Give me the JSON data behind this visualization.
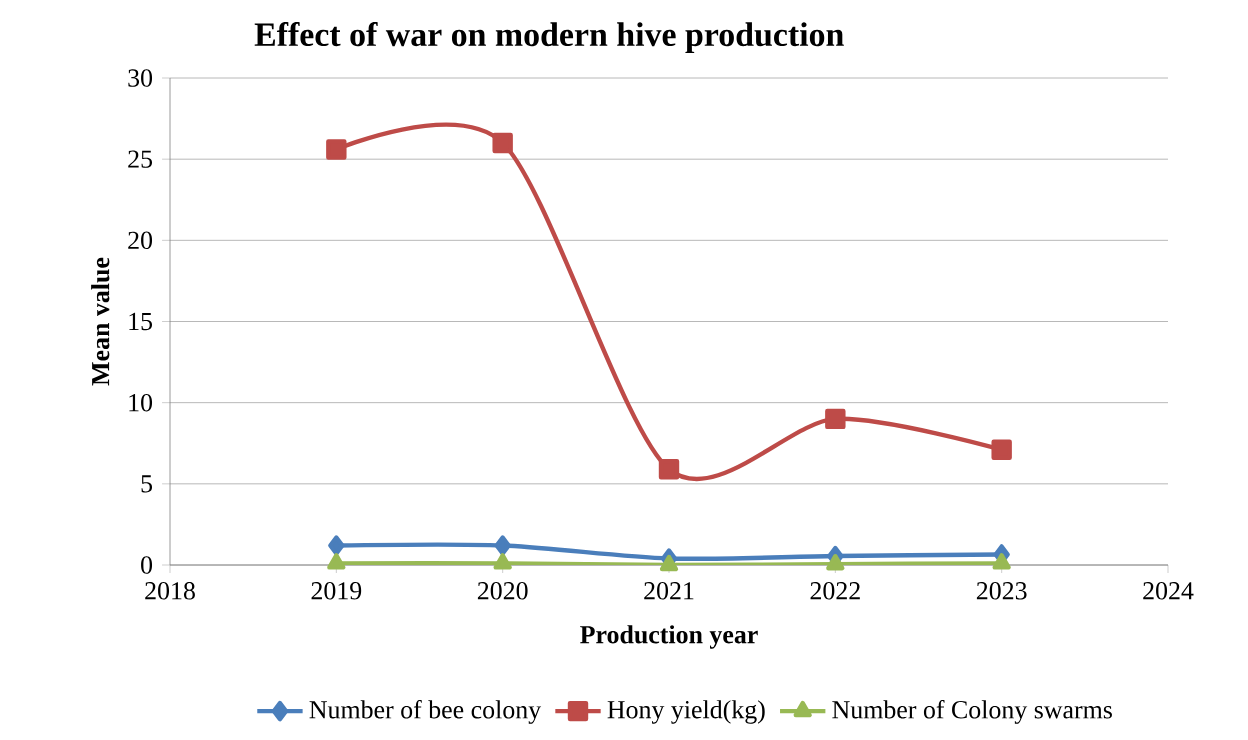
{
  "chart_data": {
    "type": "line",
    "title": "Effect of war on modern hive production",
    "xlabel": "Production year",
    "ylabel": "Mean value",
    "x": [
      2019,
      2020,
      2021,
      2022,
      2023
    ],
    "series": [
      {
        "name": "Number of bee colony",
        "color": "#4a7ebb",
        "marker": "diamond",
        "values": [
          1.2,
          1.2,
          0.4,
          0.55,
          0.65
        ]
      },
      {
        "name": "Hony yield(kg)",
        "color": "#be4b48",
        "marker": "square",
        "values": [
          25.6,
          26.0,
          5.9,
          9.0,
          7.1
        ]
      },
      {
        "name": "Number of Colony swarms",
        "color": "#98b954",
        "marker": "triangle",
        "values": [
          0.1,
          0.1,
          0.0,
          0.05,
          0.1
        ]
      }
    ],
    "xlim": [
      2018,
      2024
    ],
    "xticks": [
      2018,
      2019,
      2020,
      2021,
      2022,
      2023,
      2024
    ],
    "ylim": [
      0,
      30
    ],
    "yticks": [
      0,
      5,
      10,
      15,
      20,
      25,
      30
    ],
    "grid": "y",
    "legend": "bottom"
  }
}
